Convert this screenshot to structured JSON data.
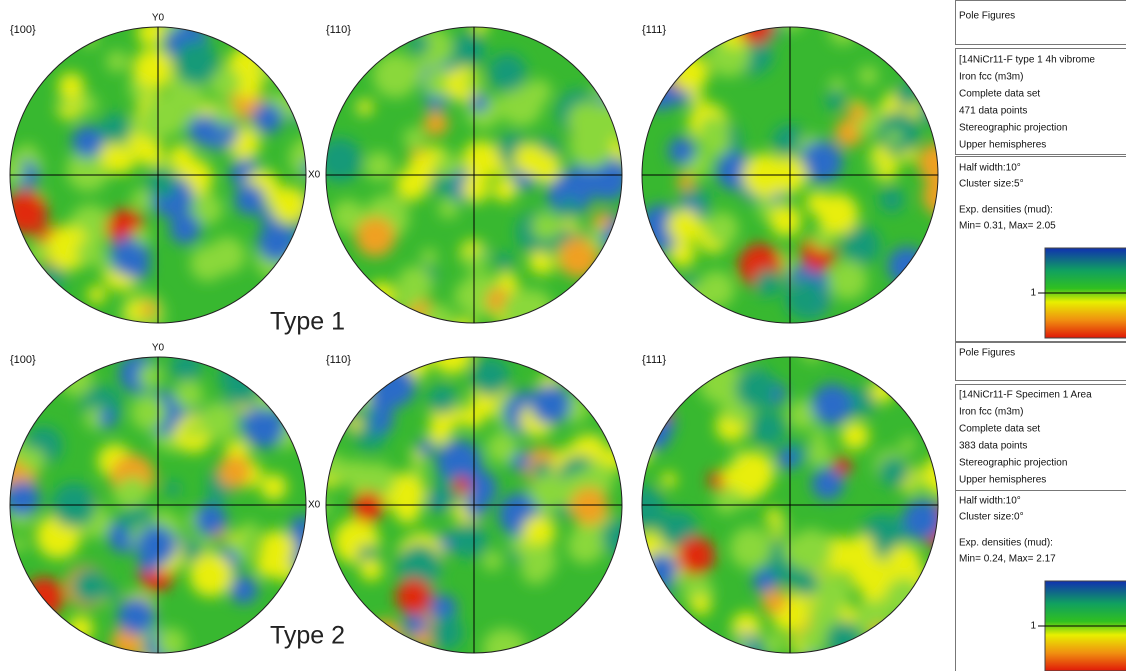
{
  "rows": [
    {
      "label": "Type 1",
      "figures": [
        {
          "title": "{100}",
          "y_axis": "Y0",
          "x_axis": "X0"
        },
        {
          "title": "{110}"
        },
        {
          "title": "{111}"
        }
      ],
      "panel": {
        "header": "Pole Figures",
        "info": [
          "[14NiCr11-F type 1 4h vibrome",
          "Iron fcc (m3m)",
          "Complete data set",
          "471 data points",
          "Stereographic projection",
          "Upper hemispheres"
        ],
        "params": [
          "Half width:10°",
          "Cluster size:5°"
        ],
        "densities": "Exp. densities (mud):",
        "range": "Min= 0.31, Max= 2.05",
        "scale_label": "1"
      }
    },
    {
      "label": "Type 2",
      "figures": [
        {
          "title": "{100}",
          "y_axis": "Y0",
          "x_axis": "X0"
        },
        {
          "title": "{110}"
        },
        {
          "title": "{111}"
        }
      ],
      "panel": {
        "header": "Pole Figures",
        "info": [
          "[14NiCr11-F Specimen 1 Area",
          "Iron fcc (m3m)",
          "Complete data set",
          "383 data points",
          "Stereographic projection",
          "Upper hemispheres"
        ],
        "params": [
          "Half width:10°",
          "Cluster size:0°"
        ],
        "densities": "Exp. densities (mud):",
        "range": "Min= 0.24, Max= 2.17",
        "scale_label": "1"
      }
    }
  ]
}
